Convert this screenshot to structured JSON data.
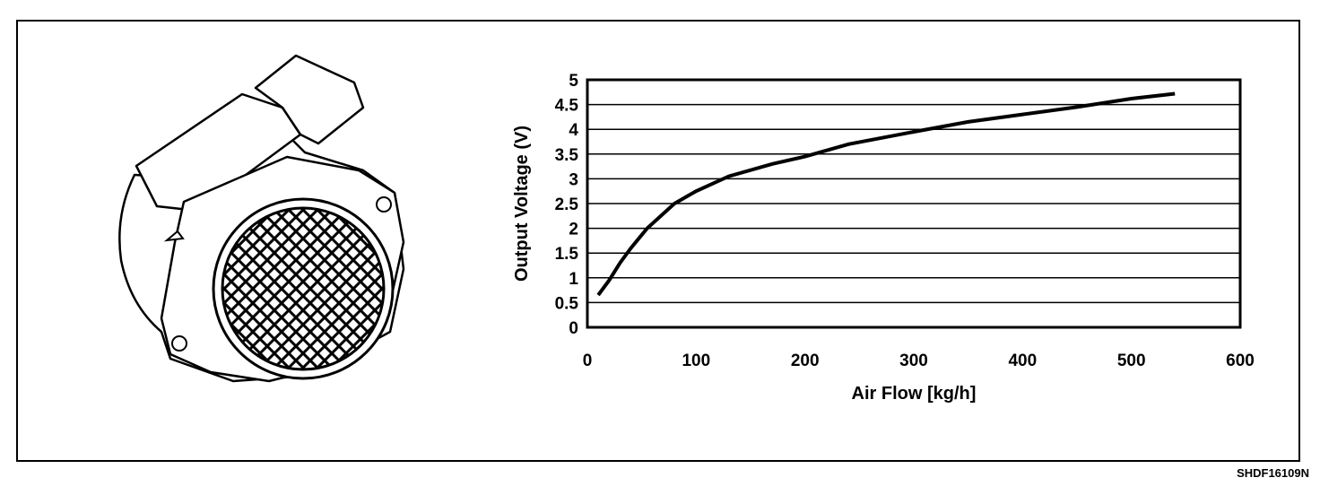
{
  "figure_code": "SHDF16109N",
  "illustration": {
    "subject": "mass air flow sensor"
  },
  "chart_data": {
    "type": "line",
    "title": "",
    "xlabel": "Air Flow [kg/h]",
    "ylabel": "Output Voltage (V)",
    "xlim": [
      0,
      600
    ],
    "ylim": [
      0,
      5
    ],
    "x_ticks": [
      "0",
      "100",
      "200",
      "300",
      "400",
      "500",
      "600"
    ],
    "y_ticks": [
      "0",
      "0.5",
      "1",
      "1.5",
      "2",
      "2.5",
      "3",
      "3.5",
      "4",
      "4.5",
      "5"
    ],
    "grid": "horizontal",
    "legend": "none",
    "series": [
      {
        "color": "#000000",
        "x": [
          10,
          20,
          30,
          40,
          55,
          80,
          100,
          130,
          170,
          200,
          240,
          300,
          350,
          400,
          450,
          500,
          540
        ],
        "y": [
          0.65,
          0.95,
          1.3,
          1.6,
          2.0,
          2.5,
          2.75,
          3.05,
          3.3,
          3.45,
          3.7,
          3.95,
          4.15,
          4.3,
          4.45,
          4.62,
          4.72
        ]
      }
    ]
  }
}
